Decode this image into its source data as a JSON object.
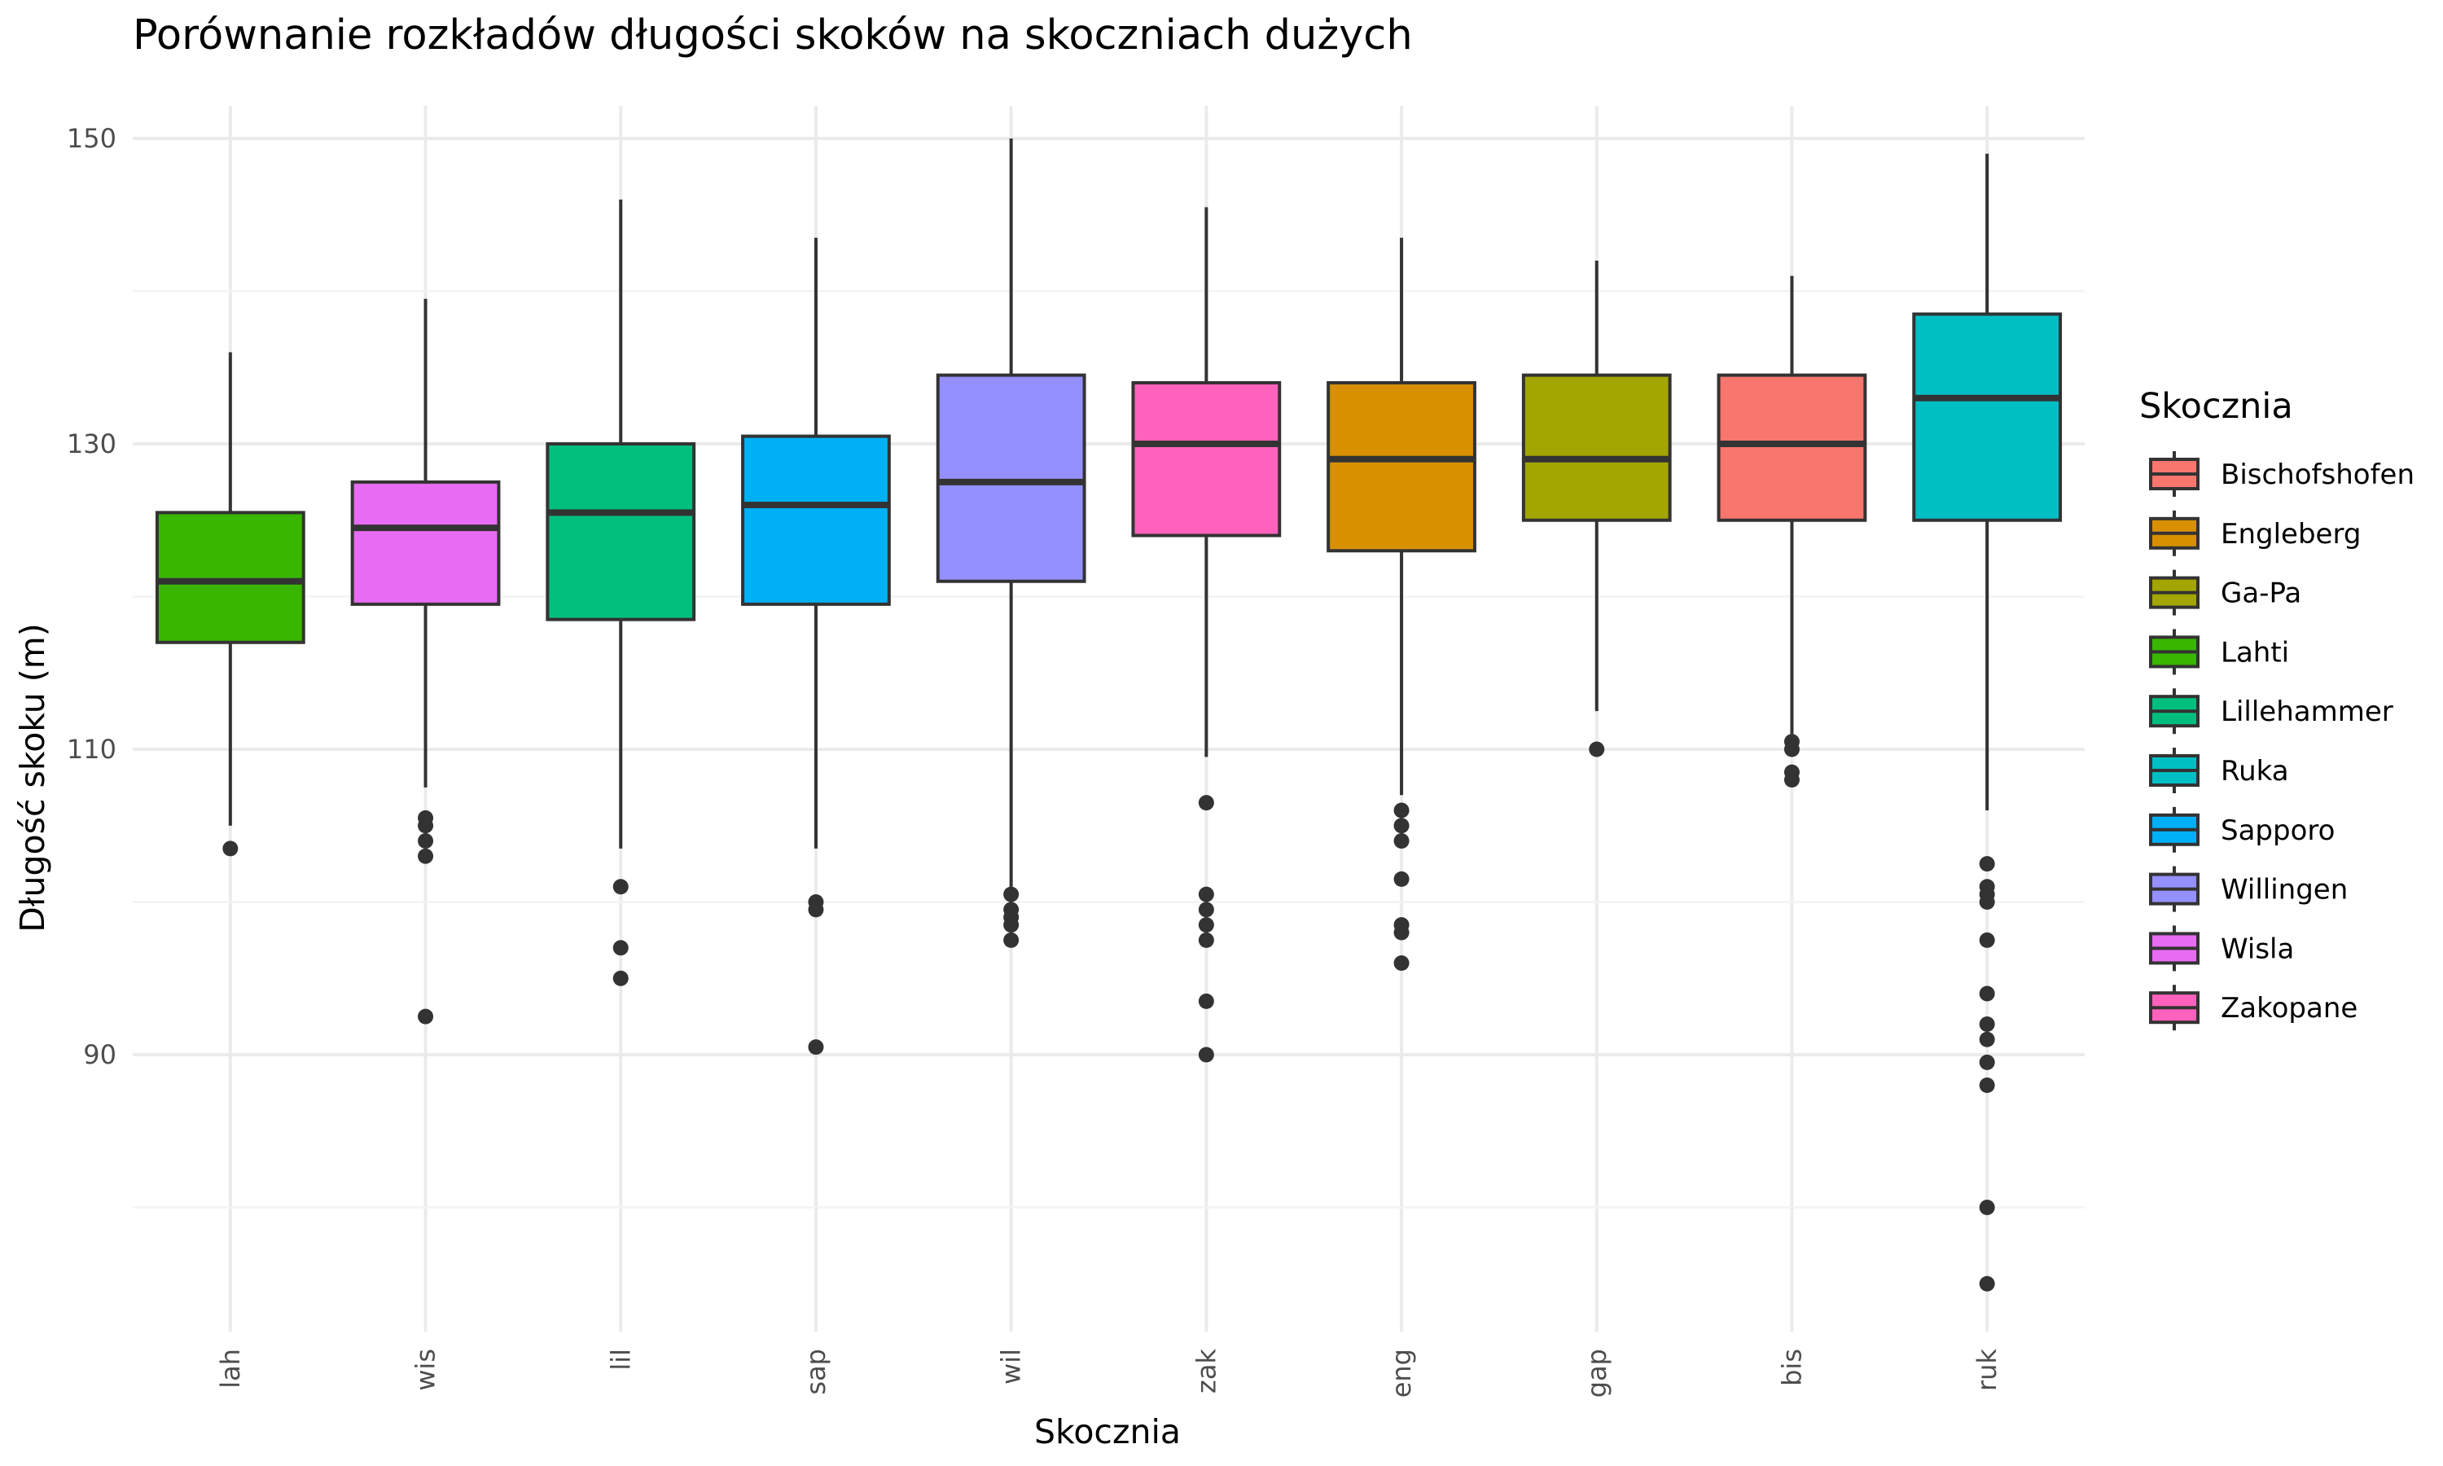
{
  "chart_data": {
    "type": "boxplot",
    "title": "Porównanie rozkładów długości skoków na skoczniach dużych",
    "xlabel": "Skocznia",
    "ylabel": "Długość skoku (m)",
    "ylim": [
      75,
      153
    ],
    "yticks": [
      90,
      110,
      130,
      150
    ],
    "grid": true,
    "legend": {
      "title": "Skocznia",
      "position": "right",
      "entries": [
        {
          "label": "Bischofshofen",
          "color": "#F8766D"
        },
        {
          "label": "Engleberg",
          "color": "#D89000"
        },
        {
          "label": "Ga-Pa",
          "color": "#A3A500"
        },
        {
          "label": "Lahti",
          "color": "#39B600"
        },
        {
          "label": "Lillehammer",
          "color": "#00BF7D"
        },
        {
          "label": "Ruka",
          "color": "#00BFC4"
        },
        {
          "label": "Sapporo",
          "color": "#00B0F6"
        },
        {
          "label": "Willingen",
          "color": "#9590FF"
        },
        {
          "label": "Wisla",
          "color": "#E76BF3"
        },
        {
          "label": "Zakopane",
          "color": "#FF62BC"
        }
      ]
    },
    "categories": [
      "lah",
      "wis",
      "lil",
      "sap",
      "wil",
      "zak",
      "eng",
      "gap",
      "bis",
      "ruk"
    ],
    "boxes": [
      {
        "x": "lah",
        "color": "#39B600",
        "whisker_low": 105,
        "q1": 117,
        "median": 121,
        "q3": 125.5,
        "whisker_high": 136,
        "outliers": [
          103.5
        ]
      },
      {
        "x": "wis",
        "color": "#E76BF3",
        "whisker_low": 107.5,
        "q1": 119.5,
        "median": 124.5,
        "q3": 127.5,
        "whisker_high": 139.5,
        "outliers": [
          105.5,
          105,
          104,
          103,
          92.5
        ]
      },
      {
        "x": "lil",
        "color": "#00BF7D",
        "whisker_low": 103.5,
        "q1": 118.5,
        "median": 125.5,
        "q3": 130,
        "whisker_high": 146,
        "outliers": [
          101,
          97,
          95
        ]
      },
      {
        "x": "sap",
        "color": "#00B0F6",
        "whisker_low": 103.5,
        "q1": 119.5,
        "median": 126,
        "q3": 130.5,
        "whisker_high": 143.5,
        "outliers": [
          100,
          99.5,
          90.5
        ]
      },
      {
        "x": "wil",
        "color": "#9590FF",
        "whisker_low": 101,
        "q1": 121,
        "median": 127.5,
        "q3": 134.5,
        "whisker_high": 150,
        "outliers": [
          100.5,
          99.5,
          99,
          98.5,
          97.5
        ]
      },
      {
        "x": "zak",
        "color": "#FF62BC",
        "whisker_low": 109.5,
        "q1": 124,
        "median": 130,
        "q3": 134,
        "whisker_high": 145.5,
        "outliers": [
          106.5,
          100.5,
          99.5,
          98.5,
          97.5,
          93.5,
          90
        ]
      },
      {
        "x": "eng",
        "color": "#D89000",
        "whisker_low": 107,
        "q1": 123,
        "median": 129,
        "q3": 134,
        "whisker_high": 143.5,
        "outliers": [
          106,
          105,
          104,
          101.5,
          98.5,
          98,
          96
        ]
      },
      {
        "x": "gap",
        "color": "#A3A500",
        "whisker_low": 112.5,
        "q1": 125,
        "median": 129,
        "q3": 134.5,
        "whisker_high": 142,
        "outliers": [
          110
        ]
      },
      {
        "x": "bis",
        "color": "#F8766D",
        "whisker_low": 111,
        "q1": 125,
        "median": 130,
        "q3": 134.5,
        "whisker_high": 141,
        "outliers": [
          110.5,
          110,
          108.5,
          108
        ]
      },
      {
        "x": "ruk",
        "color": "#00BFC4",
        "whisker_low": 106,
        "q1": 125,
        "median": 133,
        "q3": 138.5,
        "whisker_high": 149,
        "outliers": [
          102.5,
          101,
          100.5,
          100,
          97.5,
          94,
          92,
          91,
          89.5,
          88,
          80,
          75
        ]
      }
    ]
  }
}
